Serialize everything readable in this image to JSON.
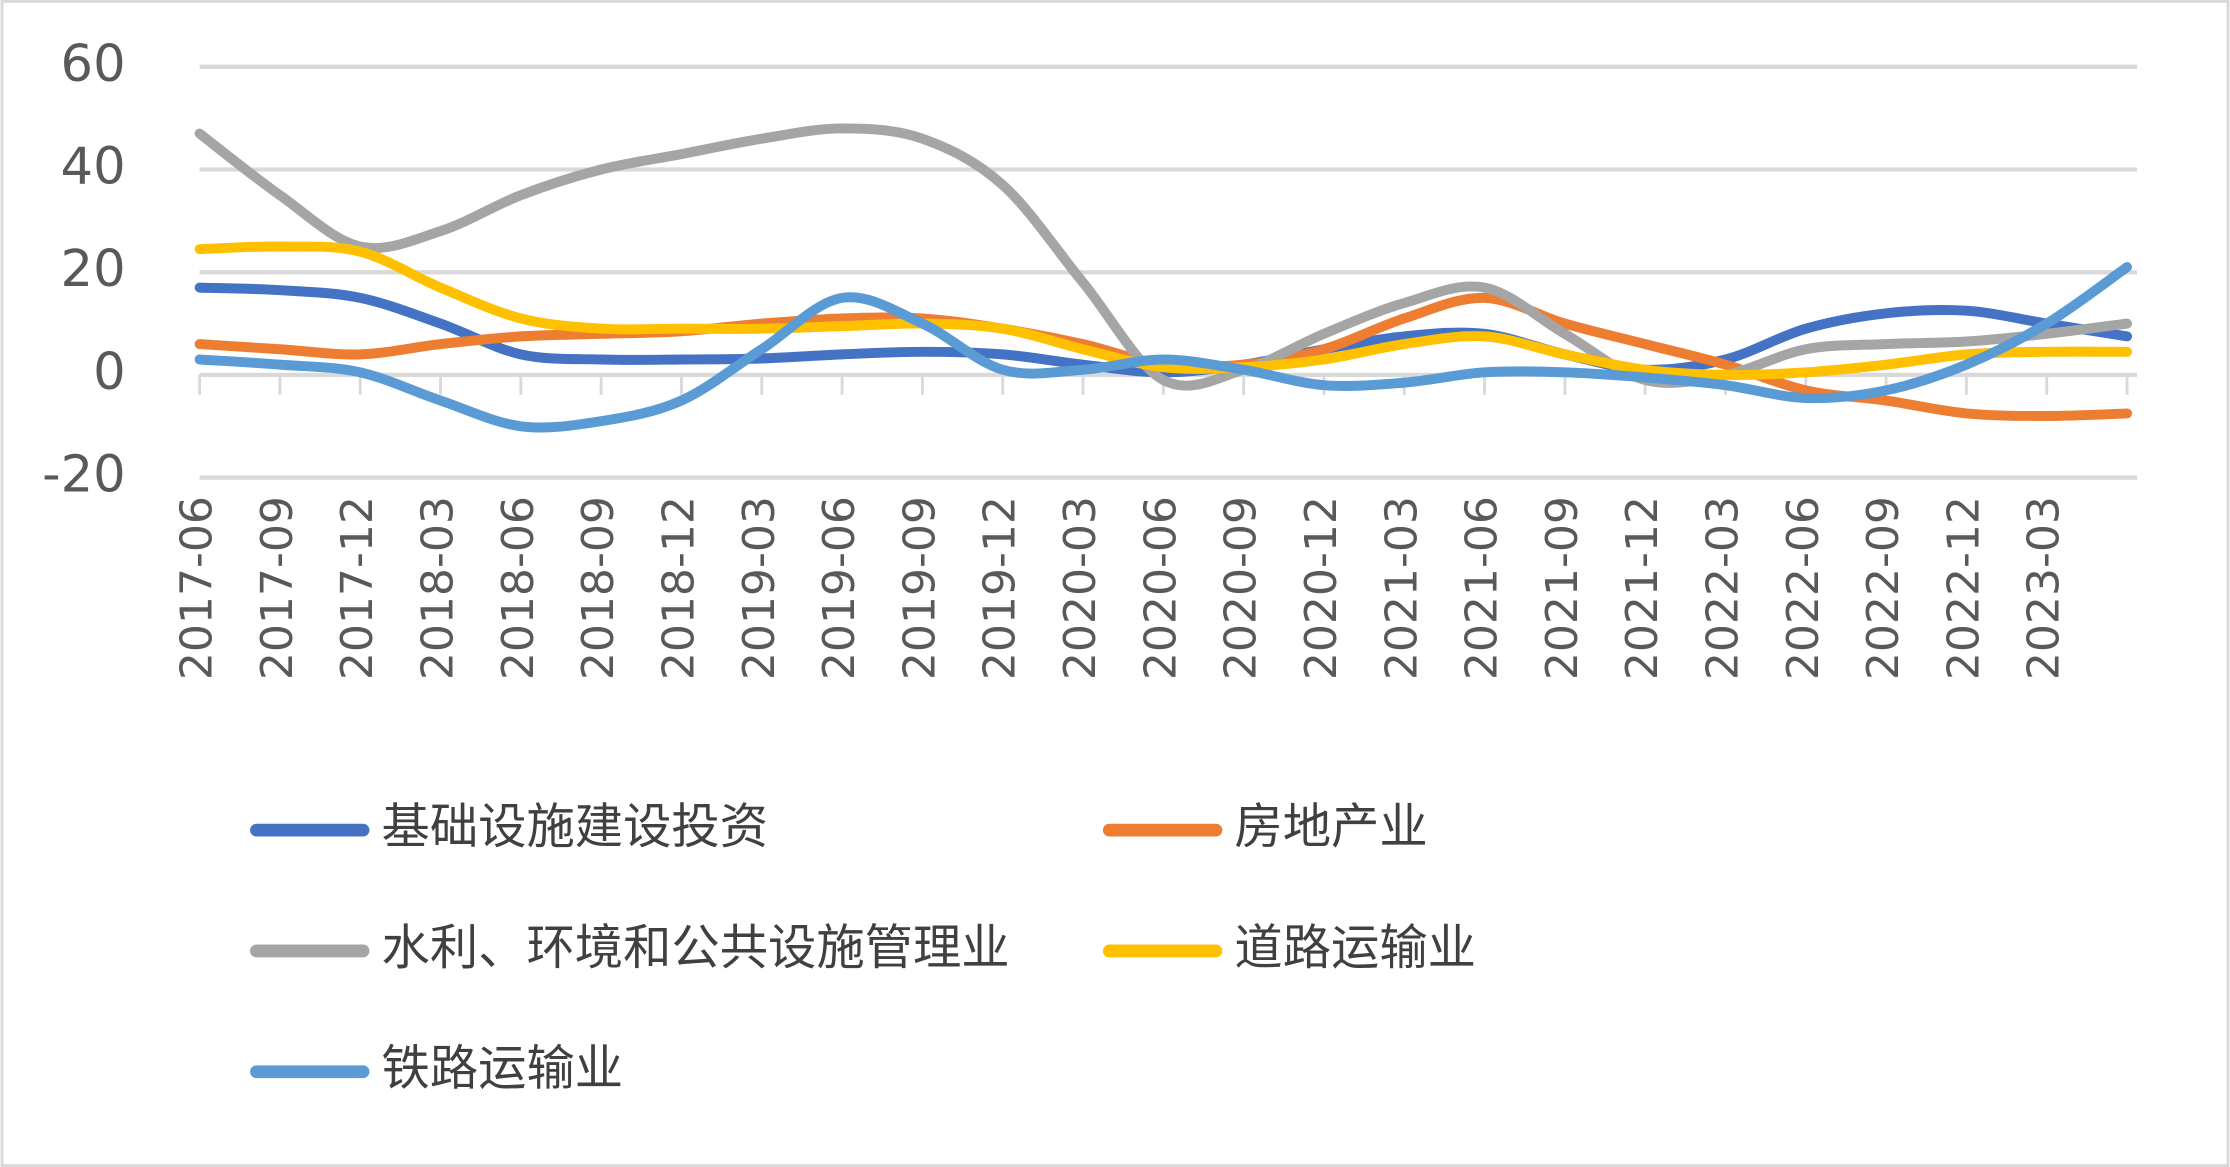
{
  "chart_data": {
    "type": "line",
    "categories": [
      "2017-06",
      "2017-09",
      "2017-12",
      "2018-03",
      "2018-06",
      "2018-09",
      "2018-12",
      "2019-03",
      "2019-06",
      "2019-09",
      "2019-12",
      "2020-03",
      "2020-06",
      "2020-09",
      "2020-12",
      "2021-03",
      "2021-06",
      "2021-09",
      "2021-12",
      "2022-03",
      "2022-06",
      "2022-09",
      "2022-12",
      "2023-03",
      null
    ],
    "series": [
      {
        "name": "基础设施建设投资",
        "color": "#4472c4",
        "values": [
          17,
          16.5,
          15,
          10,
          4,
          3,
          3,
          3.2,
          4,
          4.5,
          4,
          2,
          0.5,
          2,
          5,
          7.5,
          8,
          4,
          1,
          3,
          9,
          12,
          12.5,
          10,
          7.5
        ]
      },
      {
        "name": "房地产业",
        "color": "#ed7d31",
        "values": [
          6,
          5,
          4,
          6,
          7.5,
          8,
          8.5,
          10,
          11,
          11,
          9,
          6,
          2,
          2,
          5,
          11,
          15,
          10,
          6,
          2,
          -3,
          -5,
          -7.5,
          -8,
          -7.5
        ]
      },
      {
        "name": "水利、环境和公共设施管理业",
        "color": "#a5a5a5",
        "values": [
          47,
          35,
          25,
          28,
          35,
          40,
          43,
          46,
          48,
          46,
          37,
          18,
          -1,
          1,
          8,
          14,
          17,
          8,
          -1,
          0,
          5,
          6,
          6.5,
          8,
          10
        ]
      },
      {
        "name": "道路运输业",
        "color": "#ffc000",
        "values": [
          24.5,
          25,
          24,
          17,
          11,
          9,
          9,
          9,
          9.5,
          10,
          9,
          5,
          1.5,
          1.5,
          3,
          6,
          7.5,
          4,
          1,
          0,
          0.5,
          2,
          4,
          4.5,
          4.5
        ]
      },
      {
        "name": "铁路运输业",
        "color": "#5b9bd5",
        "values": [
          3,
          2,
          0.5,
          -5,
          -10,
          -9,
          -5,
          5,
          15,
          10,
          1,
          1,
          3,
          1,
          -2,
          -1.5,
          0.5,
          0.5,
          -0.5,
          -2,
          -4.5,
          -3,
          2,
          10,
          21
        ]
      }
    ],
    "ylim": [
      -20,
      60
    ],
    "yticks": [
      -20,
      0,
      20,
      40,
      60
    ],
    "grid": true,
    "legend": "bottom"
  }
}
